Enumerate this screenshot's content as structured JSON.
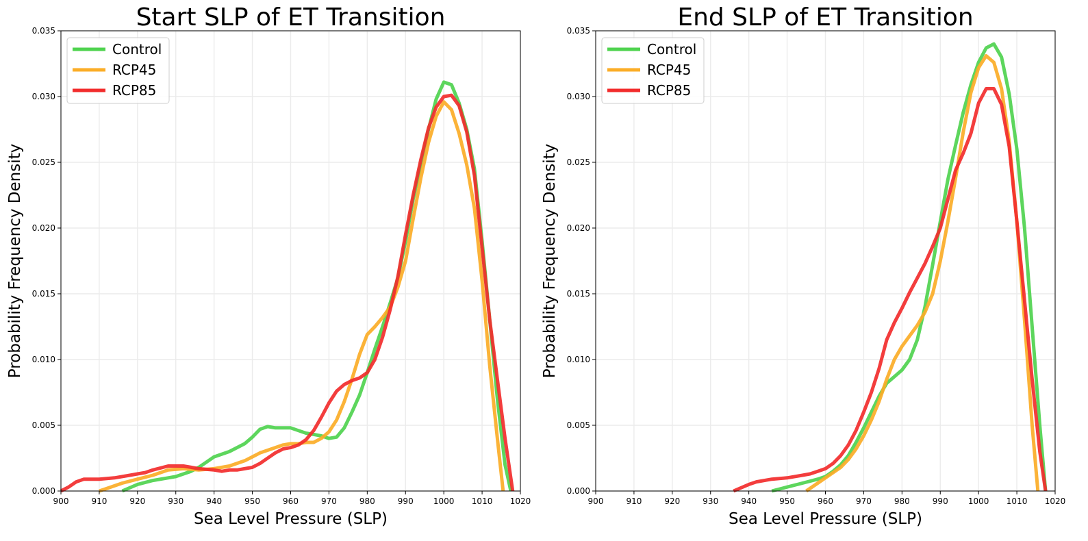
{
  "chart_data": [
    {
      "type": "line",
      "title": "Start SLP of ET Transition",
      "xlabel": "Sea Level Pressure (SLP)",
      "ylabel": "Probability Frequency Density",
      "xlim": [
        900,
        1020
      ],
      "ylim": [
        0,
        0.035
      ],
      "xticks": [
        "900",
        "910",
        "920",
        "930",
        "940",
        "950",
        "960",
        "970",
        "980",
        "990",
        "1000",
        "1010",
        "1020"
      ],
      "yticks": [
        "0.000",
        "0.005",
        "0.010",
        "0.015",
        "0.020",
        "0.025",
        "0.030",
        "0.035"
      ],
      "grid": true,
      "legend_position": "upper-left",
      "series": [
        {
          "name": "Control",
          "color": "#4fd34f",
          "points": [
            [
              916,
              0.0
            ],
            [
              920,
              0.0005
            ],
            [
              924,
              0.0008
            ],
            [
              928,
              0.001
            ],
            [
              930,
              0.0011
            ],
            [
              934,
              0.0015
            ],
            [
              936,
              0.0018
            ],
            [
              938,
              0.0022
            ],
            [
              940,
              0.0026
            ],
            [
              944,
              0.003
            ],
            [
              948,
              0.0036
            ],
            [
              950,
              0.0041
            ],
            [
              952,
              0.0047
            ],
            [
              954,
              0.0049
            ],
            [
              956,
              0.0048
            ],
            [
              958,
              0.0048
            ],
            [
              960,
              0.0048
            ],
            [
              962,
              0.0046
            ],
            [
              964,
              0.0044
            ],
            [
              966,
              0.0043
            ],
            [
              968,
              0.0042
            ],
            [
              970,
              0.004
            ],
            [
              972,
              0.0041
            ],
            [
              974,
              0.0048
            ],
            [
              976,
              0.006
            ],
            [
              978,
              0.0073
            ],
            [
              980,
              0.009
            ],
            [
              982,
              0.0108
            ],
            [
              984,
              0.0125
            ],
            [
              986,
              0.0143
            ],
            [
              988,
              0.0162
            ],
            [
              990,
              0.019
            ],
            [
              992,
              0.0222
            ],
            [
              994,
              0.0249
            ],
            [
              996,
              0.0275
            ],
            [
              998,
              0.0298
            ],
            [
              1000,
              0.0311
            ],
            [
              1002,
              0.0309
            ],
            [
              1004,
              0.0295
            ],
            [
              1006,
              0.0275
            ],
            [
              1008,
              0.0245
            ],
            [
              1010,
              0.019
            ],
            [
              1012,
              0.013
            ],
            [
              1014,
              0.007
            ],
            [
              1016,
              0.002
            ],
            [
              1017.5,
              0.0
            ]
          ]
        },
        {
          "name": "RCP45",
          "color": "#fbad27",
          "points": [
            [
              910,
              0.0
            ],
            [
              912,
              0.0002
            ],
            [
              916,
              0.0006
            ],
            [
              920,
              0.0009
            ],
            [
              924,
              0.0012
            ],
            [
              928,
              0.0016
            ],
            [
              932,
              0.0017
            ],
            [
              936,
              0.0016
            ],
            [
              940,
              0.0017
            ],
            [
              944,
              0.0019
            ],
            [
              948,
              0.0023
            ],
            [
              950,
              0.0026
            ],
            [
              952,
              0.0029
            ],
            [
              956,
              0.0033
            ],
            [
              958,
              0.0035
            ],
            [
              960,
              0.0036
            ],
            [
              962,
              0.0036
            ],
            [
              964,
              0.0037
            ],
            [
              966,
              0.0037
            ],
            [
              968,
              0.004
            ],
            [
              970,
              0.0045
            ],
            [
              972,
              0.0054
            ],
            [
              974,
              0.0068
            ],
            [
              976,
              0.0085
            ],
            [
              978,
              0.0104
            ],
            [
              980,
              0.0119
            ],
            [
              982,
              0.0125
            ],
            [
              984,
              0.0132
            ],
            [
              986,
              0.014
            ],
            [
              988,
              0.0155
            ],
            [
              990,
              0.0175
            ],
            [
              992,
              0.0207
            ],
            [
              994,
              0.0238
            ],
            [
              996,
              0.0265
            ],
            [
              998,
              0.0285
            ],
            [
              1000,
              0.0296
            ],
            [
              1002,
              0.029
            ],
            [
              1004,
              0.0272
            ],
            [
              1006,
              0.0248
            ],
            [
              1008,
              0.0215
            ],
            [
              1010,
              0.016
            ],
            [
              1012,
              0.0095
            ],
            [
              1014,
              0.004
            ],
            [
              1015.5,
              0.0
            ]
          ]
        },
        {
          "name": "RCP85",
          "color": "#f22c2c",
          "points": [
            [
              900,
              0.0
            ],
            [
              902,
              0.0003
            ],
            [
              904,
              0.0007
            ],
            [
              906,
              0.0009
            ],
            [
              910,
              0.0009
            ],
            [
              914,
              0.001
            ],
            [
              918,
              0.0012
            ],
            [
              920,
              0.0013
            ],
            [
              922,
              0.0014
            ],
            [
              924,
              0.0016
            ],
            [
              928,
              0.0019
            ],
            [
              930,
              0.0019
            ],
            [
              932,
              0.0019
            ],
            [
              934,
              0.0018
            ],
            [
              936,
              0.0017
            ],
            [
              940,
              0.0016
            ],
            [
              942,
              0.0015
            ],
            [
              944,
              0.0016
            ],
            [
              946,
              0.0016
            ],
            [
              948,
              0.0017
            ],
            [
              950,
              0.0018
            ],
            [
              952,
              0.0021
            ],
            [
              954,
              0.0025
            ],
            [
              956,
              0.0029
            ],
            [
              958,
              0.0032
            ],
            [
              960,
              0.0033
            ],
            [
              962,
              0.0035
            ],
            [
              964,
              0.0039
            ],
            [
              966,
              0.0046
            ],
            [
              968,
              0.0056
            ],
            [
              970,
              0.0067
            ],
            [
              972,
              0.0076
            ],
            [
              974,
              0.0081
            ],
            [
              976,
              0.0084
            ],
            [
              978,
              0.0086
            ],
            [
              980,
              0.009
            ],
            [
              982,
              0.01
            ],
            [
              984,
              0.0117
            ],
            [
              986,
              0.0138
            ],
            [
              988,
              0.0163
            ],
            [
              990,
              0.0195
            ],
            [
              992,
              0.0225
            ],
            [
              994,
              0.0252
            ],
            [
              996,
              0.0276
            ],
            [
              998,
              0.0292
            ],
            [
              1000,
              0.03
            ],
            [
              1002,
              0.0301
            ],
            [
              1004,
              0.0293
            ],
            [
              1006,
              0.0273
            ],
            [
              1008,
              0.024
            ],
            [
              1010,
              0.0185
            ],
            [
              1012,
              0.013
            ],
            [
              1014,
              0.0085
            ],
            [
              1016,
              0.004
            ],
            [
              1018,
              0.0
            ]
          ]
        }
      ]
    },
    {
      "type": "line",
      "title": "End SLP of ET Transition",
      "xlabel": "Sea Level Pressure (SLP)",
      "ylabel": "Probability Frequency Density",
      "xlim": [
        900,
        1020
      ],
      "ylim": [
        0,
        0.035
      ],
      "xticks": [
        "900",
        "910",
        "920",
        "930",
        "940",
        "950",
        "960",
        "970",
        "980",
        "990",
        "1000",
        "1010",
        "1020"
      ],
      "yticks": [
        "0.000",
        "0.005",
        "0.010",
        "0.015",
        "0.020",
        "0.025",
        "0.030",
        "0.035"
      ],
      "grid": true,
      "legend_position": "upper-left",
      "series": [
        {
          "name": "Control",
          "color": "#4fd34f",
          "points": [
            [
              946,
              0.0
            ],
            [
              950,
              0.0003
            ],
            [
              954,
              0.0006
            ],
            [
              958,
              0.0009
            ],
            [
              960,
              0.0011
            ],
            [
              962,
              0.0015
            ],
            [
              964,
              0.002
            ],
            [
              966,
              0.0027
            ],
            [
              968,
              0.0037
            ],
            [
              970,
              0.0048
            ],
            [
              972,
              0.006
            ],
            [
              974,
              0.0072
            ],
            [
              976,
              0.0082
            ],
            [
              978,
              0.0087
            ],
            [
              980,
              0.0092
            ],
            [
              982,
              0.01
            ],
            [
              984,
              0.0115
            ],
            [
              986,
              0.014
            ],
            [
              988,
              0.0172
            ],
            [
              990,
              0.0205
            ],
            [
              992,
              0.0237
            ],
            [
              994,
              0.0263
            ],
            [
              996,
              0.0288
            ],
            [
              998,
              0.0309
            ],
            [
              1000,
              0.0326
            ],
            [
              1002,
              0.0337
            ],
            [
              1004,
              0.034
            ],
            [
              1006,
              0.033
            ],
            [
              1008,
              0.0302
            ],
            [
              1010,
              0.026
            ],
            [
              1012,
              0.02
            ],
            [
              1014,
              0.0125
            ],
            [
              1016,
              0.005
            ],
            [
              1017.5,
              0.0
            ]
          ]
        },
        {
          "name": "RCP45",
          "color": "#fbad27",
          "points": [
            [
              955,
              0.0
            ],
            [
              958,
              0.0006
            ],
            [
              960,
              0.001
            ],
            [
              964,
              0.0018
            ],
            [
              966,
              0.0024
            ],
            [
              968,
              0.0032
            ],
            [
              970,
              0.0042
            ],
            [
              972,
              0.0054
            ],
            [
              974,
              0.0068
            ],
            [
              976,
              0.0085
            ],
            [
              978,
              0.01
            ],
            [
              980,
              0.011
            ],
            [
              982,
              0.0118
            ],
            [
              984,
              0.0126
            ],
            [
              986,
              0.0136
            ],
            [
              988,
              0.015
            ],
            [
              990,
              0.0175
            ],
            [
              992,
              0.0205
            ],
            [
              994,
              0.0238
            ],
            [
              996,
              0.0273
            ],
            [
              998,
              0.0303
            ],
            [
              1000,
              0.0322
            ],
            [
              1002,
              0.0331
            ],
            [
              1004,
              0.0326
            ],
            [
              1006,
              0.0306
            ],
            [
              1008,
              0.0266
            ],
            [
              1010,
              0.0205
            ],
            [
              1012,
              0.013
            ],
            [
              1014,
              0.005
            ],
            [
              1015.5,
              0.0
            ]
          ]
        },
        {
          "name": "RCP85",
          "color": "#f22c2c",
          "points": [
            [
              936,
              0.0
            ],
            [
              940,
              0.0005
            ],
            [
              942,
              0.0007
            ],
            [
              946,
              0.0009
            ],
            [
              950,
              0.001
            ],
            [
              954,
              0.0012
            ],
            [
              956,
              0.0013
            ],
            [
              958,
              0.0015
            ],
            [
              960,
              0.0017
            ],
            [
              962,
              0.0021
            ],
            [
              964,
              0.0027
            ],
            [
              966,
              0.0035
            ],
            [
              968,
              0.0046
            ],
            [
              970,
              0.006
            ],
            [
              972,
              0.0075
            ],
            [
              974,
              0.0093
            ],
            [
              976,
              0.0115
            ],
            [
              978,
              0.0128
            ],
            [
              980,
              0.0139
            ],
            [
              982,
              0.0151
            ],
            [
              984,
              0.0162
            ],
            [
              986,
              0.0173
            ],
            [
              988,
              0.0186
            ],
            [
              990,
              0.02
            ],
            [
              992,
              0.0222
            ],
            [
              994,
              0.0244
            ],
            [
              996,
              0.0257
            ],
            [
              998,
              0.0272
            ],
            [
              1000,
              0.0295
            ],
            [
              1002,
              0.0306
            ],
            [
              1004,
              0.0306
            ],
            [
              1006,
              0.0294
            ],
            [
              1008,
              0.0262
            ],
            [
              1010,
              0.0205
            ],
            [
              1012,
              0.0145
            ],
            [
              1014,
              0.0085
            ],
            [
              1016,
              0.003
            ],
            [
              1017.5,
              0.0
            ]
          ]
        }
      ]
    }
  ]
}
